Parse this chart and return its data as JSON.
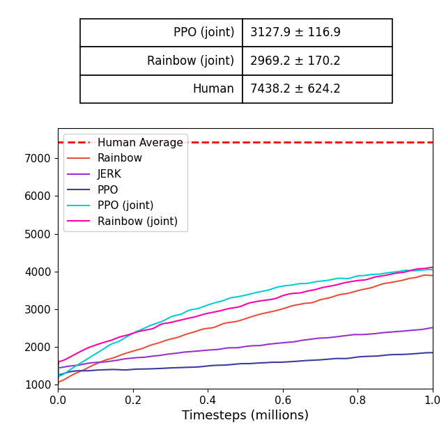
{
  "xlabel": "Timesteps (millions)",
  "human_avg": 7438.2,
  "table_rows": [
    [
      "PPO (joint)",
      "3127.9 ± 116.9"
    ],
    [
      "Rainbow (joint)",
      "2969.2 ± 170.2"
    ],
    [
      "Human",
      "7438.2 ± 624.2"
    ]
  ],
  "lines": {
    "Human Average": {
      "color": "#FF0000",
      "linestyle": "--",
      "linewidth": 2.0
    },
    "Rainbow": {
      "color": "#E8503A",
      "linestyle": "-",
      "linewidth": 1.5
    },
    "JERK": {
      "color": "#9932CC",
      "linestyle": "-",
      "linewidth": 1.5
    },
    "PPO": {
      "color": "#3B3BA0",
      "linestyle": "-",
      "linewidth": 1.5
    },
    "PPO (joint)": {
      "color": "#00CED1",
      "linestyle": "-",
      "linewidth": 1.5
    },
    "Rainbow (joint)": {
      "color": "#FF00AA",
      "linestyle": "-",
      "linewidth": 1.5
    }
  },
  "ylim": [
    900,
    7800
  ],
  "xlim": [
    0.0,
    1.0
  ],
  "yticks": [
    1000,
    2000,
    3000,
    4000,
    5000,
    6000,
    7000
  ],
  "xticks": [
    0.0,
    0.2,
    0.4,
    0.6,
    0.8,
    1.0
  ]
}
